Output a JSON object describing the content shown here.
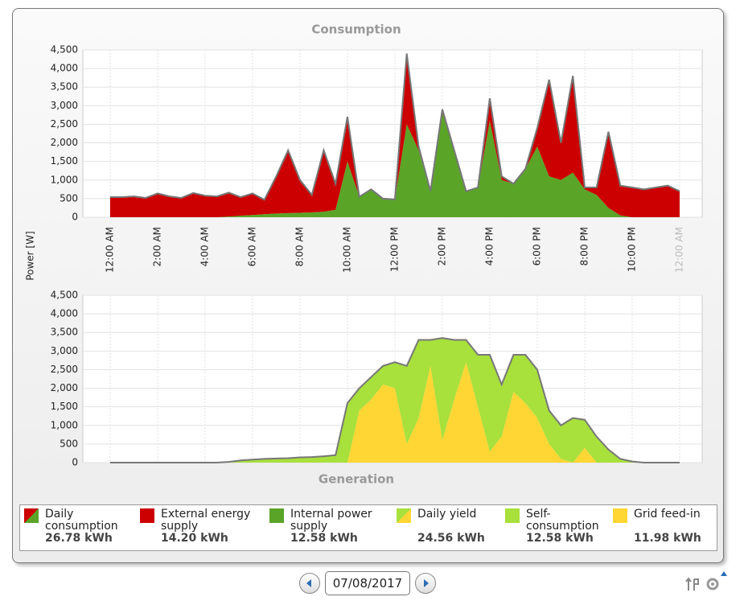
{
  "chart_data": [
    {
      "type": "area",
      "stacked": true,
      "title": "Consumption",
      "y_label": "Power [W]",
      "x": [
        0,
        0.5,
        1,
        1.5,
        2,
        2.5,
        3,
        3.5,
        4,
        4.5,
        5,
        5.5,
        6,
        6.5,
        7,
        7.5,
        8,
        8.5,
        9,
        9.5,
        10,
        10.5,
        11,
        11.5,
        12,
        12.5,
        13,
        13.5,
        14,
        14.5,
        15,
        15.5,
        16,
        16.5,
        17,
        17.5,
        18,
        18.5,
        19,
        19.5,
        20,
        20.5,
        21,
        21.5,
        22,
        22.5,
        23,
        23.5,
        24
      ],
      "xlim": [
        -1.15,
        24.95
      ],
      "xticks": [
        {
          "value": 0,
          "label": "12:00 AM"
        },
        {
          "value": 2,
          "label": "2:00 AM"
        },
        {
          "value": 4,
          "label": "4:00 AM"
        },
        {
          "value": 6,
          "label": "6:00 AM"
        },
        {
          "value": 8,
          "label": "8:00 AM"
        },
        {
          "value": 10,
          "label": "10:00 AM"
        },
        {
          "value": 12,
          "label": "12:00 PM"
        },
        {
          "value": 14,
          "label": "2:00 PM"
        },
        {
          "value": 16,
          "label": "4:00 PM"
        },
        {
          "value": 18,
          "label": "6:00 PM"
        },
        {
          "value": 20,
          "label": "8:00 PM"
        },
        {
          "value": 22,
          "label": "10:00 PM"
        },
        {
          "value": 24,
          "label": "12:00 AM"
        }
      ],
      "ylim": [
        0,
        4500
      ],
      "yticks": [
        0,
        500,
        {
          "value": 1000,
          "label": "1,000"
        },
        {
          "value": 1500,
          "label": "1,500"
        },
        {
          "value": 2000,
          "label": "2,000"
        },
        {
          "value": 2500,
          "label": "2,500"
        },
        {
          "value": 3000,
          "label": "3,000"
        },
        {
          "value": 3500,
          "label": "3,500"
        },
        {
          "value": 4000,
          "label": "4,000"
        },
        {
          "value": 4500,
          "label": "4,500"
        }
      ],
      "grid": true,
      "total": {
        "name": "Daily consumption",
        "value_label": "26.78 kWh"
      },
      "series": [
        {
          "name": "External energy supply",
          "color": "#cc0000",
          "total_label": "14.20 kWh",
          "values": [
            540,
            540,
            560,
            520,
            640,
            560,
            520,
            650,
            580,
            560,
            640,
            500,
            580,
            390,
            1000,
            1690,
            880,
            470,
            1650,
            700,
            1200,
            0,
            0,
            0,
            0,
            1900,
            100,
            0,
            100,
            0,
            0,
            0,
            600,
            100,
            0,
            0,
            500,
            2600,
            1000,
            2600,
            50,
            200,
            2050,
            800,
            800,
            750,
            800,
            850,
            700
          ]
        },
        {
          "name": "Internal power supply",
          "color": "#5aa428",
          "total_label": "12.58 kWh",
          "values": [
            0,
            0,
            0,
            0,
            0,
            0,
            0,
            0,
            0,
            0,
            20,
            40,
            60,
            80,
            100,
            110,
            120,
            130,
            150,
            200,
            1500,
            550,
            750,
            500,
            480,
            2500,
            1800,
            700,
            2800,
            1800,
            700,
            800,
            2600,
            1000,
            900,
            1300,
            1900,
            1100,
            1000,
            1200,
            750,
            600,
            250,
            50,
            0,
            0,
            0,
            0,
            0
          ]
        }
      ]
    },
    {
      "type": "area",
      "stacked": true,
      "title": "Generation",
      "x": [
        0,
        0.5,
        1,
        1.5,
        2,
        2.5,
        3,
        3.5,
        4,
        4.5,
        5,
        5.5,
        6,
        6.5,
        7,
        7.5,
        8,
        8.5,
        9,
        9.5,
        10,
        10.5,
        11,
        11.5,
        12,
        12.5,
        13,
        13.5,
        14,
        14.5,
        15,
        15.5,
        16,
        16.5,
        17,
        17.5,
        18,
        18.5,
        19,
        19.5,
        20,
        20.5,
        21,
        21.5,
        22,
        22.5,
        23,
        23.5,
        24
      ],
      "xlim": [
        -1.15,
        24.95
      ],
      "ylim": [
        0,
        4500
      ],
      "yticks": [
        0,
        500,
        {
          "value": 1000,
          "label": "1,000"
        },
        {
          "value": 1500,
          "label": "1,500"
        },
        {
          "value": 2000,
          "label": "2,000"
        },
        {
          "value": 2500,
          "label": "2,500"
        },
        {
          "value": 3000,
          "label": "3,000"
        },
        {
          "value": 3500,
          "label": "3,500"
        },
        {
          "value": 4000,
          "label": "4,000"
        },
        {
          "value": 4500,
          "label": "4,500"
        }
      ],
      "grid": true,
      "total": {
        "name": "Daily yield",
        "value_label": "24.56 kWh"
      },
      "series": [
        {
          "name": "Self-consumption",
          "color": "#a8e03c",
          "total_label": "12.58 kWh",
          "values": [
            0,
            0,
            0,
            0,
            0,
            0,
            0,
            0,
            0,
            0,
            20,
            60,
            80,
            100,
            110,
            120,
            140,
            150,
            170,
            200,
            1600,
            600,
            600,
            500,
            700,
            2100,
            2100,
            700,
            2750,
            1600,
            600,
            1400,
            2600,
            1400,
            1000,
            1300,
            1300,
            900,
            900,
            1200,
            750,
            700,
            350,
            100,
            30,
            0,
            0,
            0,
            0
          ]
        },
        {
          "name": "Grid feed-in",
          "color": "#ffd633",
          "total_label": "11.98 kWh",
          "values": [
            0,
            0,
            0,
            0,
            0,
            0,
            0,
            0,
            0,
            0,
            0,
            0,
            0,
            0,
            0,
            0,
            0,
            0,
            0,
            0,
            0,
            1400,
            1700,
            2100,
            2000,
            500,
            1200,
            2600,
            600,
            1700,
            2700,
            1500,
            300,
            700,
            1900,
            1600,
            1200,
            500,
            100,
            0,
            400,
            0,
            0,
            0,
            0,
            0,
            0,
            0,
            0
          ]
        }
      ]
    }
  ],
  "date": "07/08/2017"
}
